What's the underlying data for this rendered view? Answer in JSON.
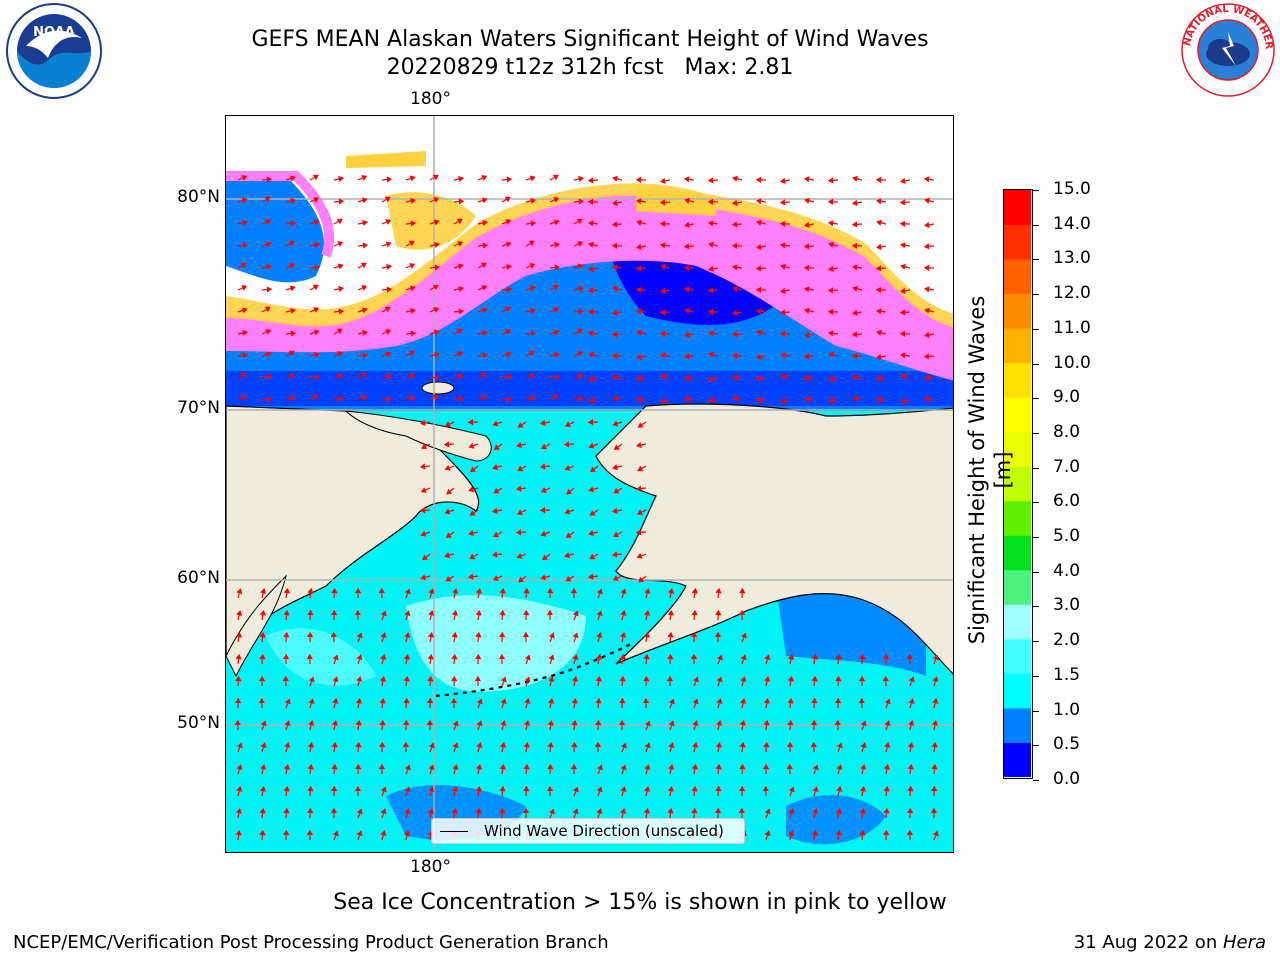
{
  "title": {
    "line1": "GEFS MEAN Alaskan Waters Significant Height of Wind Waves",
    "line2": "20220829 t12z 312h fcst   Max: 2.81"
  },
  "logos": {
    "noaa": {
      "text": "NOAA",
      "icon": "noaa-logo"
    },
    "nws": {
      "text": "NATIONAL WEATHER SERVICE",
      "icon": "nws-logo"
    }
  },
  "map": {
    "lat_labels": [
      "80°N",
      "70°N",
      "60°N",
      "50°N"
    ],
    "lon_label_top": "180°",
    "lon_label_bottom": "180°",
    "legend_label": "Wind Wave Direction (unscaled)",
    "colors": {
      "land": "#efecdc",
      "ice_free_unknown": "#ffffff",
      "arrow": "#ff0000",
      "grid": "#b0b0b0"
    }
  },
  "colorbar": {
    "label": "Significant Height of Wind Waves [m]",
    "ticks": [
      "0.0",
      "0.5",
      "1.0",
      "1.5",
      "2.0",
      "3.0",
      "4.0",
      "5.0",
      "6.0",
      "7.0",
      "8.0",
      "9.0",
      "10.0",
      "11.0",
      "12.0",
      "13.0",
      "14.0",
      "15.0"
    ],
    "colors": [
      "#0000ff",
      "#0080ff",
      "#00ffff",
      "#40ffff",
      "#a0ffff",
      "#50f080",
      "#00e020",
      "#60f000",
      "#c0ff00",
      "#e8ff00",
      "#ffff00",
      "#ffe000",
      "#ffb000",
      "#ff8c00",
      "#ff6000",
      "#ff3000",
      "#ff0000"
    ]
  },
  "ice_note": "Sea Ice Concentration > 15% is shown in pink to yellow",
  "footer": {
    "left": "NCEP/EMC/Verification Post Processing Product Generation Branch",
    "right_prefix": "31 Aug 2022 on ",
    "right_host": "Hera"
  }
}
